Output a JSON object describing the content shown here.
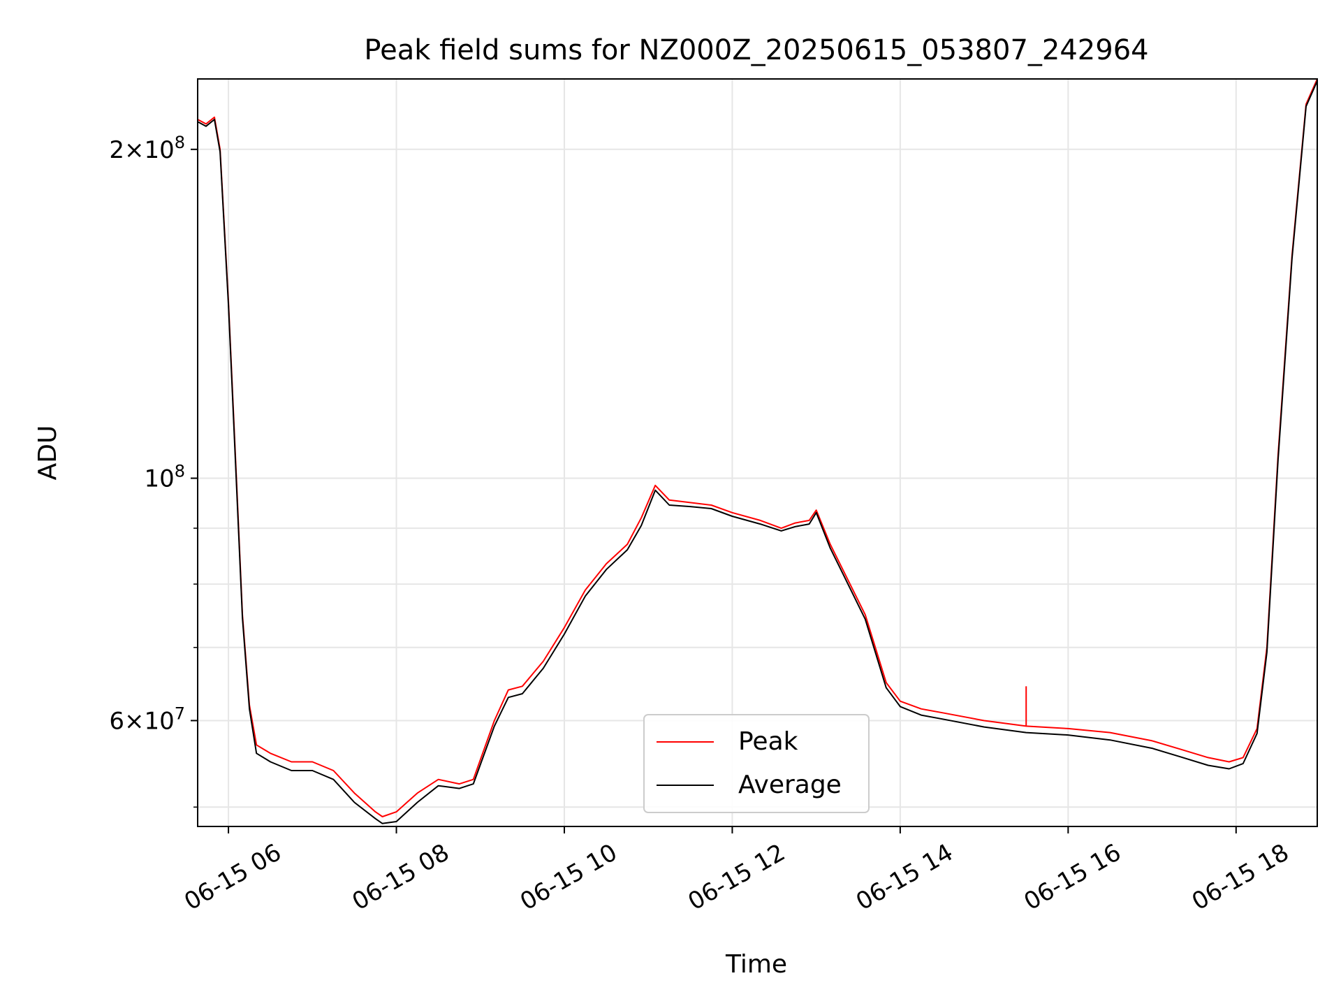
{
  "chart_data": {
    "type": "line",
    "title": "Peak field sums for NZ000Z_20250615_053807_242964",
    "xlabel": "Time",
    "ylabel": "ADU",
    "x_range": [
      "2025-06-15 05:38",
      "2025-06-15 18:58"
    ],
    "y_scale": "log",
    "ylim": [
      48000000,
      232000000
    ],
    "grid": true,
    "legend_position": "lower center",
    "x_ticks": [
      {
        "value": "2025-06-15 06:00",
        "label": "06-15 06"
      },
      {
        "value": "2025-06-15 08:00",
        "label": "06-15 08"
      },
      {
        "value": "2025-06-15 10:00",
        "label": "06-15 10"
      },
      {
        "value": "2025-06-15 12:00",
        "label": "06-15 12"
      },
      {
        "value": "2025-06-15 14:00",
        "label": "06-15 14"
      },
      {
        "value": "2025-06-15 16:00",
        "label": "06-15 16"
      },
      {
        "value": "2025-06-15 18:00",
        "label": "06-15 18"
      }
    ],
    "y_major_ticks": [
      {
        "value": 60000000,
        "mantissa": "6",
        "base": "10",
        "exp": "7",
        "times": "×"
      },
      {
        "value": 100000000,
        "mantissa": "",
        "base": "10",
        "exp": "8",
        "times": ""
      },
      {
        "value": 200000000,
        "mantissa": "2",
        "base": "10",
        "exp": "8",
        "times": "×"
      }
    ],
    "y_minor_ticks": [
      50000000,
      70000000,
      80000000,
      90000000
    ],
    "series": [
      {
        "name": "Peak",
        "color": "#ff0000",
        "x": [
          "2025-06-15 05:38",
          "2025-06-15 05:44",
          "2025-06-15 05:50",
          "2025-06-15 05:54",
          "2025-06-15 06:00",
          "2025-06-15 06:06",
          "2025-06-15 06:10",
          "2025-06-15 06:15",
          "2025-06-15 06:20",
          "2025-06-15 06:30",
          "2025-06-15 06:45",
          "2025-06-15 07:00",
          "2025-06-15 07:15",
          "2025-06-15 07:30",
          "2025-06-15 07:45",
          "2025-06-15 07:50",
          "2025-06-15 08:00",
          "2025-06-15 08:15",
          "2025-06-15 08:30",
          "2025-06-15 08:45",
          "2025-06-15 08:55",
          "2025-06-15 09:10",
          "2025-06-15 09:20",
          "2025-06-15 09:30",
          "2025-06-15 09:45",
          "2025-06-15 10:00",
          "2025-06-15 10:15",
          "2025-06-15 10:30",
          "2025-06-15 10:45",
          "2025-06-15 10:55",
          "2025-06-15 11:05",
          "2025-06-15 11:15",
          "2025-06-15 11:30",
          "2025-06-15 11:45",
          "2025-06-15 12:00",
          "2025-06-15 12:20",
          "2025-06-15 12:35",
          "2025-06-15 12:45",
          "2025-06-15 12:55",
          "2025-06-15 13:00",
          "2025-06-15 13:10",
          "2025-06-15 13:20",
          "2025-06-15 13:35",
          "2025-06-15 13:50",
          "2025-06-15 14:00",
          "2025-06-15 14:15",
          "2025-06-15 14:30",
          "2025-06-15 15:00",
          "2025-06-15 15:30",
          "2025-06-15 16:00",
          "2025-06-15 16:30",
          "2025-06-15 17:00",
          "2025-06-15 17:20",
          "2025-06-15 17:40",
          "2025-06-15 17:55",
          "2025-06-15 18:05",
          "2025-06-15 18:15",
          "2025-06-15 18:22",
          "2025-06-15 18:30",
          "2025-06-15 18:40",
          "2025-06-15 18:50",
          "2025-06-15 18:58"
        ],
        "y": [
          213000000,
          211000000,
          214000000,
          200000000,
          145000000,
          98000000,
          75000000,
          62000000,
          57000000,
          56000000,
          55000000,
          55000000,
          54000000,
          51500000,
          49500000,
          49000000,
          49500000,
          51500000,
          53000000,
          52500000,
          53000000,
          60000000,
          64000000,
          64500000,
          68000000,
          73000000,
          79000000,
          83500000,
          87000000,
          92000000,
          98500000,
          95500000,
          95000000,
          94500000,
          93000000,
          91500000,
          90000000,
          91000000,
          91500000,
          93500000,
          87000000,
          82000000,
          75000000,
          65000000,
          62500000,
          61500000,
          61000000,
          60000000,
          59300000,
          59000000,
          58500000,
          57500000,
          56500000,
          55500000,
          55000000,
          55500000,
          59000000,
          70000000,
          105000000,
          160000000,
          220000000,
          232000000
        ],
        "spikes": [
          {
            "x": "2025-06-15 15:30",
            "y": 64500000
          }
        ]
      },
      {
        "name": "Average",
        "color": "#000000",
        "x": [
          "2025-06-15 05:38",
          "2025-06-15 05:44",
          "2025-06-15 05:50",
          "2025-06-15 05:54",
          "2025-06-15 06:00",
          "2025-06-15 06:06",
          "2025-06-15 06:10",
          "2025-06-15 06:15",
          "2025-06-15 06:20",
          "2025-06-15 06:30",
          "2025-06-15 06:45",
          "2025-06-15 07:00",
          "2025-06-15 07:15",
          "2025-06-15 07:30",
          "2025-06-15 07:45",
          "2025-06-15 07:50",
          "2025-06-15 08:00",
          "2025-06-15 08:15",
          "2025-06-15 08:30",
          "2025-06-15 08:45",
          "2025-06-15 08:55",
          "2025-06-15 09:10",
          "2025-06-15 09:20",
          "2025-06-15 09:30",
          "2025-06-15 09:45",
          "2025-06-15 10:00",
          "2025-06-15 10:15",
          "2025-06-15 10:30",
          "2025-06-15 10:45",
          "2025-06-15 10:55",
          "2025-06-15 11:05",
          "2025-06-15 11:15",
          "2025-06-15 11:30",
          "2025-06-15 11:45",
          "2025-06-15 12:00",
          "2025-06-15 12:20",
          "2025-06-15 12:35",
          "2025-06-15 12:45",
          "2025-06-15 12:55",
          "2025-06-15 13:00",
          "2025-06-15 13:10",
          "2025-06-15 13:20",
          "2025-06-15 13:35",
          "2025-06-15 13:50",
          "2025-06-15 14:00",
          "2025-06-15 14:15",
          "2025-06-15 14:30",
          "2025-06-15 15:00",
          "2025-06-15 15:30",
          "2025-06-15 16:00",
          "2025-06-15 16:30",
          "2025-06-15 17:00",
          "2025-06-15 17:20",
          "2025-06-15 17:40",
          "2025-06-15 17:55",
          "2025-06-15 18:05",
          "2025-06-15 18:15",
          "2025-06-15 18:22",
          "2025-06-15 18:30",
          "2025-06-15 18:40",
          "2025-06-15 18:50",
          "2025-06-15 18:58"
        ],
        "y": [
          212000000,
          210000000,
          213000000,
          199000000,
          144000000,
          97000000,
          74500000,
          61500000,
          56000000,
          55000000,
          54000000,
          54000000,
          53000000,
          50500000,
          48800000,
          48300000,
          48500000,
          50500000,
          52300000,
          52000000,
          52500000,
          59300000,
          63000000,
          63500000,
          67000000,
          72000000,
          78000000,
          82500000,
          86000000,
          90500000,
          97500000,
          94500000,
          94200000,
          93800000,
          92300000,
          90800000,
          89500000,
          90300000,
          90800000,
          93000000,
          86300000,
          81300000,
          74300000,
          64300000,
          61800000,
          60700000,
          60200000,
          59200000,
          58500000,
          58200000,
          57600000,
          56600000,
          55600000,
          54600000,
          54200000,
          54800000,
          58400000,
          69300000,
          104000000,
          159000000,
          219000000,
          231000000
        ]
      }
    ]
  }
}
